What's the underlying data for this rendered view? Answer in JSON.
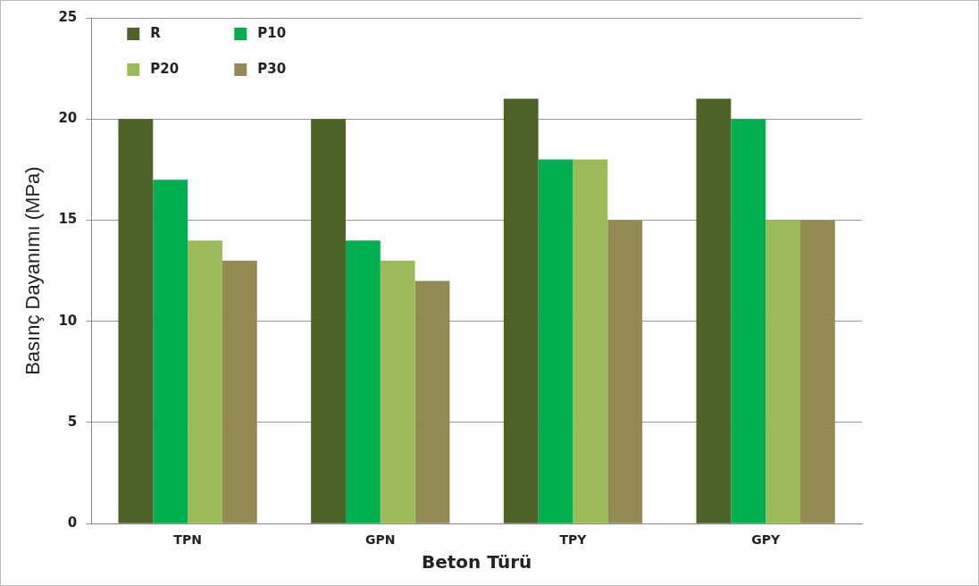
{
  "chart_data": {
    "type": "bar",
    "xlabel": "Beton Türü",
    "ylabel": "Basınç Dayanımı (MPa)",
    "categories": [
      "TPN",
      "GPN",
      "TPY",
      "GPY"
    ],
    "series": [
      {
        "name": "R",
        "color": "#4f6228",
        "values": [
          20,
          20,
          21,
          21
        ]
      },
      {
        "name": "P10",
        "color": "#00b050",
        "values": [
          17,
          14,
          18,
          20
        ]
      },
      {
        "name": "P20",
        "color": "#9bbb59",
        "values": [
          14,
          13,
          18,
          15
        ]
      },
      {
        "name": "P30",
        "color": "#948a54",
        "values": [
          13,
          12,
          15,
          15
        ]
      }
    ],
    "ylim": [
      0,
      25
    ],
    "yticks": [
      0,
      5,
      10,
      15,
      20,
      25
    ],
    "grid": "y",
    "legend": "top left"
  }
}
